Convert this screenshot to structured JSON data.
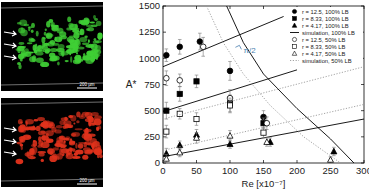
{
  "images": [
    {
      "color": "#3fcf35",
      "scale_label": "200 µm"
    },
    {
      "color": "#e0321c",
      "scale_label": "200 µm"
    }
  ],
  "chart_data": {
    "type": "scatter",
    "xlabel": "Re [x10⁻⁷]",
    "ylabel": "A*",
    "xlim": [
      0,
      300
    ],
    "ylim": [
      0,
      1500
    ],
    "xticks": [
      0,
      50,
      100,
      150,
      200,
      250,
      300
    ],
    "yticks": [
      0,
      250,
      500,
      750,
      1000,
      1250,
      1500
    ],
    "legend": "upper right",
    "grid": false,
    "annotations": [
      {
        "text": "π/2",
        "x": 120,
        "y": 1000
      }
    ],
    "series": [
      {
        "name": "r = 12.5, 100% LB",
        "color": "#000000",
        "marker": "circle",
        "x": [
          5,
          25,
          55,
          100,
          150
        ],
        "values": [
          1030,
          1110,
          1160,
          880,
          440
        ],
        "errors": [
          60,
          70,
          80,
          90,
          60
        ]
      },
      {
        "name": "r = 8.33, 100% LB",
        "color": "#000000",
        "marker": "square",
        "x": [
          5,
          25,
          50,
          100,
          150
        ],
        "values": [
          500,
          660,
          780,
          570,
          380
        ],
        "errors": [
          80,
          70,
          60,
          80,
          50
        ]
      },
      {
        "name": "r = 4.17, 100% LB",
        "color": "#000000",
        "marker": "triangle",
        "x": [
          5,
          25,
          50,
          100,
          160,
          255
        ],
        "values": [
          90,
          170,
          270,
          180,
          200,
          110
        ],
        "errors": [
          50,
          40,
          50,
          40,
          40,
          40
        ]
      },
      {
        "name": "simulation, 100% LB",
        "type": "line",
        "line_style": "solid",
        "color": "#000000",
        "x": [
          0,
          180,
          null,
          0,
          200,
          null,
          0,
          300,
          null,
          95,
          120,
          150,
          200,
          250,
          285
        ],
        "values": [
          920,
          1400,
          null,
          490,
          890,
          null,
          60,
          420,
          null,
          1500,
          1150,
          850,
          520,
          230,
          0
        ]
      },
      {
        "name": "r = 12.5, 50% LB",
        "color": "#000000",
        "marker": "circle-open",
        "x": [
          5,
          25,
          60,
          100,
          155
        ],
        "values": [
          810,
          790,
          1110,
          620,
          380
        ],
        "errors": [
          70,
          60,
          90,
          80,
          60
        ]
      },
      {
        "name": "r = 8.33, 50% LB",
        "color": "#000000",
        "marker": "square-open",
        "x": [
          5,
          25,
          50,
          100,
          150
        ],
        "values": [
          300,
          470,
          420,
          550,
          290
        ],
        "errors": [
          60,
          50,
          60,
          70,
          50
        ]
      },
      {
        "name": "r = 4.17, 50% LB",
        "color": "#000000",
        "marker": "triangle-open",
        "x": [
          5,
          25,
          50,
          100,
          155,
          250
        ],
        "values": [
          40,
          100,
          240,
          260,
          200,
          30
        ],
        "errors": [
          40,
          40,
          50,
          50,
          40,
          30
        ]
      },
      {
        "name": "simulation, 50% LB",
        "type": "line",
        "line_style": "dotted",
        "color": "#999999",
        "x": [
          0,
          300,
          null,
          0,
          300,
          null,
          65,
          90,
          120,
          160,
          210,
          265
        ],
        "values": [
          420,
          920,
          null,
          120,
          560,
          null,
          1500,
          1150,
          850,
          550,
          250,
          0
        ]
      }
    ]
  }
}
